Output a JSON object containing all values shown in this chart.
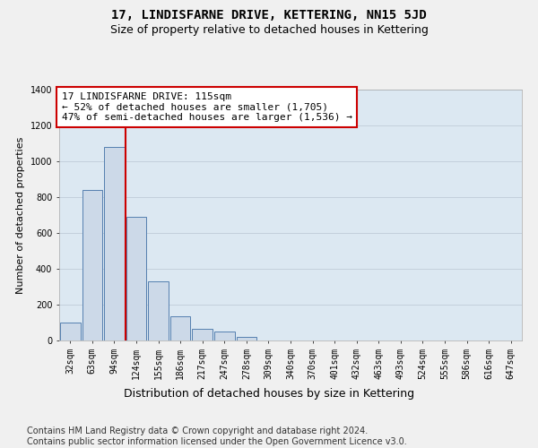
{
  "title": "17, LINDISFARNE DRIVE, KETTERING, NN15 5JD",
  "subtitle": "Size of property relative to detached houses in Kettering",
  "xlabel": "Distribution of detached houses by size in Kettering",
  "ylabel": "Number of detached properties",
  "footer_line1": "Contains HM Land Registry data © Crown copyright and database right 2024.",
  "footer_line2": "Contains public sector information licensed under the Open Government Licence v3.0.",
  "annotation_line1": "17 LINDISFARNE DRIVE: 115sqm",
  "annotation_line2": "← 52% of detached houses are smaller (1,705)",
  "annotation_line3": "47% of semi-detached houses are larger (1,536) →",
  "categories": [
    "32sqm",
    "63sqm",
    "94sqm",
    "124sqm",
    "155sqm",
    "186sqm",
    "217sqm",
    "247sqm",
    "278sqm",
    "309sqm",
    "340sqm",
    "370sqm",
    "401sqm",
    "432sqm",
    "463sqm",
    "493sqm",
    "524sqm",
    "555sqm",
    "586sqm",
    "616sqm",
    "647sqm"
  ],
  "values": [
    100,
    840,
    1080,
    690,
    330,
    135,
    65,
    50,
    20,
    0,
    0,
    0,
    0,
    0,
    0,
    0,
    0,
    0,
    0,
    0,
    0
  ],
  "bar_color": "#ccd9e8",
  "bar_edge_color": "#5580b0",
  "vline_color": "#cc0000",
  "vline_x": 2.5,
  "ylim": [
    0,
    1400
  ],
  "yticks": [
    0,
    200,
    400,
    600,
    800,
    1000,
    1200,
    1400
  ],
  "grid_color": "#c0ccd8",
  "bg_color": "#dce8f2",
  "fig_bg_color": "#f0f0f0",
  "title_fontsize": 10,
  "subtitle_fontsize": 9,
  "annot_fontsize": 8,
  "tick_fontsize": 7,
  "ylabel_fontsize": 8,
  "xlabel_fontsize": 9,
  "footer_fontsize": 7
}
